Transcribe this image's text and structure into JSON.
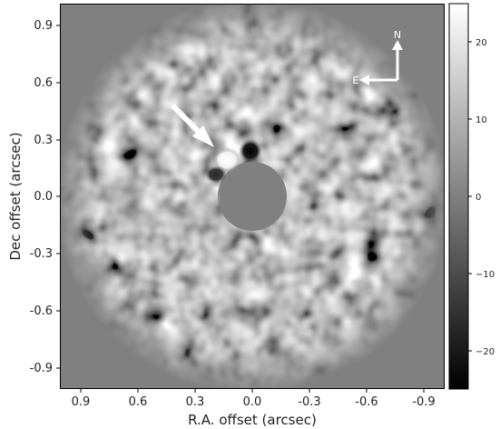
{
  "image": {
    "x_axis_label": "R.A. offset (arcsec)",
    "y_axis_label": "Dec offset (arcsec)",
    "x_ticks": [
      "0.9",
      "0.6",
      "0.3",
      "0.0",
      "-0.3",
      "-0.6",
      "-0.9"
    ],
    "y_ticks": [
      "0.9",
      "0.6",
      "0.3",
      "0.0",
      "-0.3",
      "-0.6",
      "-0.9"
    ],
    "colorbar_ticks": [
      "20",
      "10",
      "0",
      "−10",
      "−20"
    ],
    "compass": {
      "north": "N",
      "east": "E"
    },
    "colors": {
      "background": "#808080",
      "frame": "#000000",
      "arrow": "#ffffff"
    }
  }
}
